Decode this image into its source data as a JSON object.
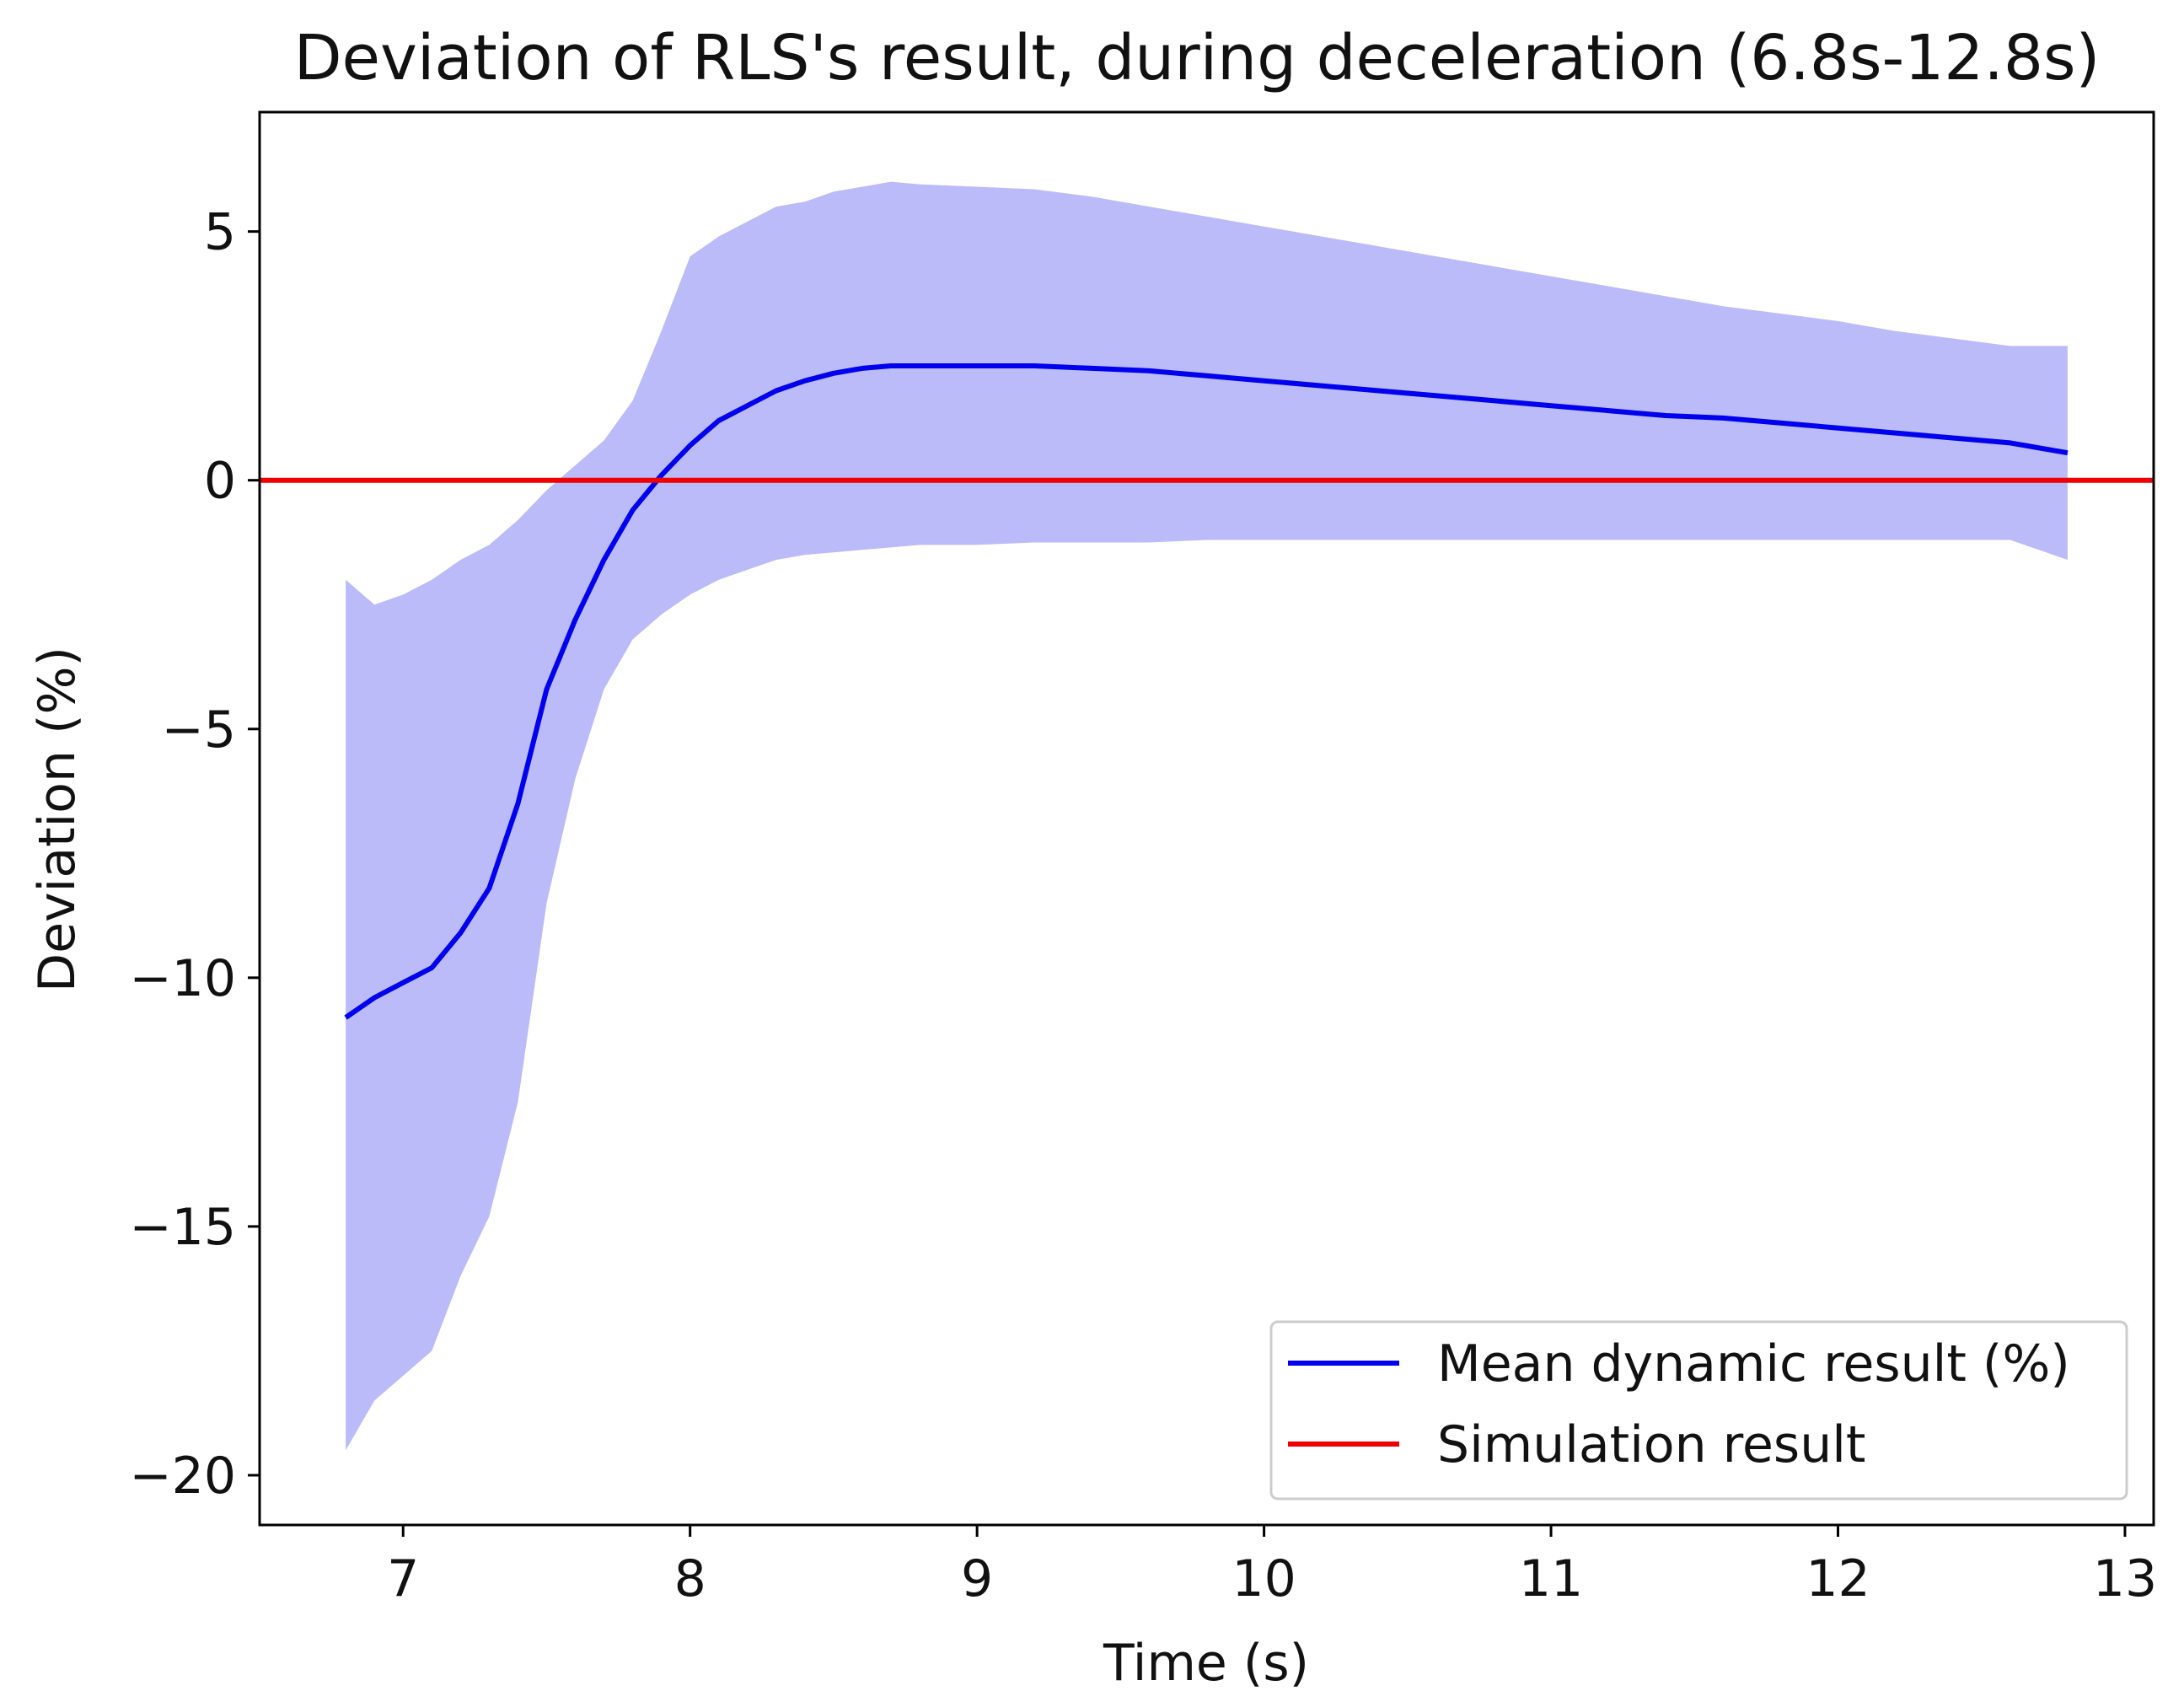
{
  "chart_data": {
    "type": "line",
    "title": "Deviation of RLS's result, during deceleration (6.8s-12.8s)",
    "xlabel": "Time (s)",
    "ylabel": "Deviation (%)",
    "xlim": [
      6.5,
      13.1
    ],
    "ylim": [
      -21.0,
      7.4
    ],
    "x_ticks": [
      7,
      8,
      9,
      10,
      11,
      12,
      13
    ],
    "x_tick_labels": [
      "7",
      "8",
      "9",
      "10",
      "11",
      "12",
      "13"
    ],
    "y_ticks": [
      5,
      0,
      -5,
      -10,
      -15,
      -20
    ],
    "y_tick_labels": [
      "5",
      "0",
      "−5",
      "−10",
      "−15",
      "−20"
    ],
    "grid": false,
    "legend_position": "lower-right",
    "series": [
      {
        "name": "Mean dynamic result (%)",
        "color": "#0000ee",
        "x": [
          6.8,
          6.9,
          7.0,
          7.1,
          7.2,
          7.3,
          7.4,
          7.5,
          7.6,
          7.7,
          7.8,
          7.9,
          8.0,
          8.1,
          8.2,
          8.3,
          8.4,
          8.5,
          8.6,
          8.7,
          8.8,
          9.0,
          9.2,
          9.4,
          9.6,
          9.8,
          10.0,
          10.2,
          10.4,
          10.6,
          10.8,
          11.0,
          11.2,
          11.4,
          11.6,
          11.8,
          12.0,
          12.2,
          12.4,
          12.6,
          12.8
        ],
        "y": [
          -10.8,
          -10.4,
          -10.1,
          -9.8,
          -9.1,
          -8.2,
          -6.5,
          -4.2,
          -2.8,
          -1.6,
          -0.6,
          0.1,
          0.7,
          1.2,
          1.5,
          1.8,
          2.0,
          2.15,
          2.25,
          2.3,
          2.3,
          2.3,
          2.3,
          2.25,
          2.2,
          2.1,
          2.0,
          1.9,
          1.8,
          1.7,
          1.6,
          1.5,
          1.4,
          1.3,
          1.25,
          1.15,
          1.05,
          0.95,
          0.85,
          0.75,
          0.55
        ]
      },
      {
        "name": "Simulation result",
        "color": "#ee0000",
        "x": [
          6.5,
          13.1
        ],
        "y": [
          0,
          0
        ]
      }
    ],
    "band": {
      "color": "#bbbbf9",
      "x": [
        6.8,
        6.9,
        7.0,
        7.1,
        7.2,
        7.3,
        7.4,
        7.5,
        7.6,
        7.7,
        7.8,
        7.9,
        8.0,
        8.1,
        8.2,
        8.3,
        8.4,
        8.5,
        8.6,
        8.7,
        8.8,
        9.0,
        9.2,
        9.4,
        9.6,
        9.8,
        10.0,
        10.2,
        10.4,
        10.6,
        10.8,
        11.0,
        11.2,
        11.4,
        11.6,
        11.8,
        12.0,
        12.2,
        12.4,
        12.6,
        12.8
      ],
      "upper": [
        -2.0,
        -2.5,
        -2.3,
        -2.0,
        -1.6,
        -1.3,
        -0.8,
        -0.2,
        0.3,
        0.8,
        1.6,
        3.0,
        4.5,
        4.9,
        5.2,
        5.5,
        5.6,
        5.8,
        5.9,
        6.0,
        5.95,
        5.9,
        5.85,
        5.7,
        5.5,
        5.3,
        5.1,
        4.9,
        4.7,
        4.5,
        4.3,
        4.1,
        3.9,
        3.7,
        3.5,
        3.35,
        3.2,
        3.0,
        2.85,
        2.7,
        2.7
      ],
      "lower": [
        -19.5,
        -18.5,
        -18.0,
        -17.5,
        -16.0,
        -14.8,
        -12.5,
        -8.5,
        -6.0,
        -4.2,
        -3.2,
        -2.7,
        -2.3,
        -2.0,
        -1.8,
        -1.6,
        -1.5,
        -1.45,
        -1.4,
        -1.35,
        -1.3,
        -1.3,
        -1.25,
        -1.25,
        -1.25,
        -1.2,
        -1.2,
        -1.2,
        -1.2,
        -1.2,
        -1.2,
        -1.2,
        -1.2,
        -1.2,
        -1.2,
        -1.2,
        -1.2,
        -1.2,
        -1.2,
        -1.2,
        -1.6
      ]
    }
  }
}
